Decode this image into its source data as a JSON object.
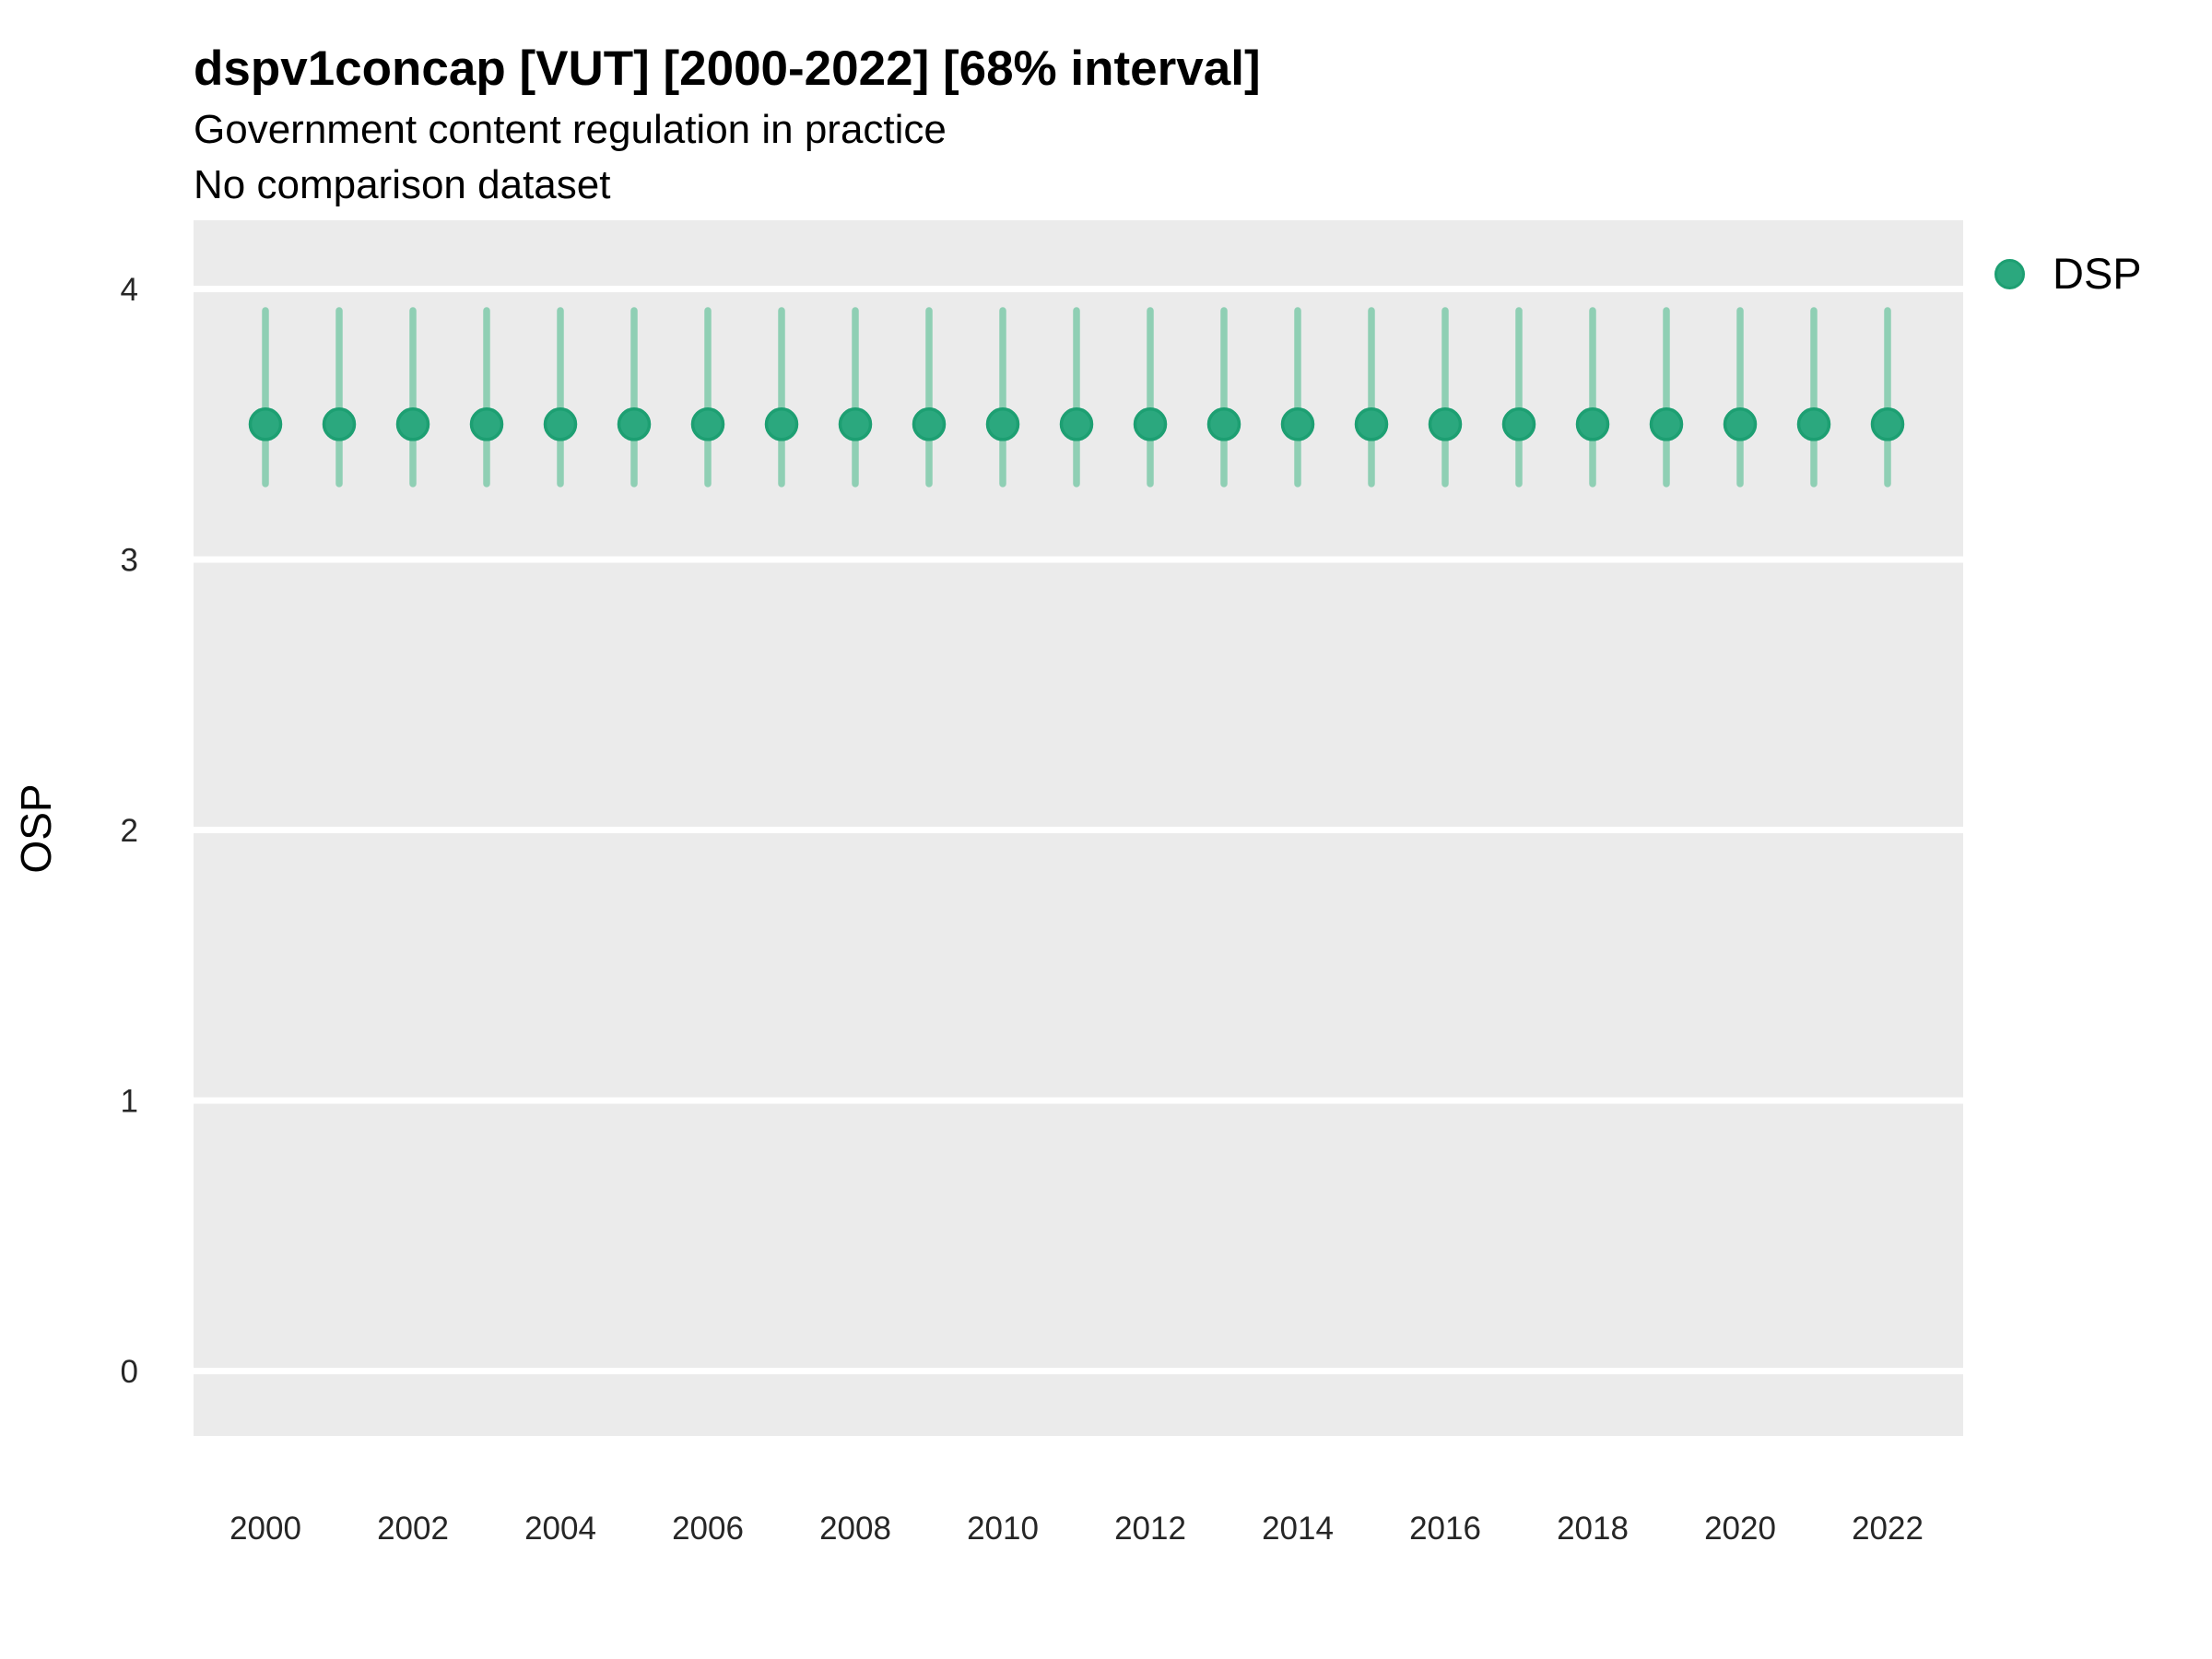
{
  "header": {
    "title": "dspv1concap [VUT] [2000-2022] [68% interval]",
    "subtitle1": "Government content regulation in practice",
    "subtitle2": "No comparison dataset"
  },
  "legend": {
    "position": "right-top",
    "items": [
      {
        "label": "DSP",
        "marker": "circle",
        "color": "#2BA87E"
      }
    ]
  },
  "chart_data": {
    "type": "scatter",
    "title": "dspv1concap [VUT] [2000-2022] [68% interval]",
    "subtitle": [
      "Government content regulation in practice",
      "No comparison dataset"
    ],
    "xlabel": "",
    "ylabel": "OSP",
    "interval_level": "68%",
    "x": [
      2000,
      2001,
      2002,
      2003,
      2004,
      2005,
      2006,
      2007,
      2008,
      2009,
      2010,
      2011,
      2012,
      2013,
      2014,
      2015,
      2016,
      2017,
      2018,
      2019,
      2020,
      2021,
      2022
    ],
    "series": [
      {
        "name": "DSP",
        "estimate": [
          3.5,
          3.5,
          3.5,
          3.5,
          3.5,
          3.5,
          3.5,
          3.5,
          3.5,
          3.5,
          3.5,
          3.5,
          3.5,
          3.5,
          3.5,
          3.5,
          3.5,
          3.5,
          3.5,
          3.5,
          3.5,
          3.5,
          3.5
        ],
        "lower_68": [
          3.28,
          3.28,
          3.28,
          3.28,
          3.28,
          3.28,
          3.28,
          3.28,
          3.28,
          3.28,
          3.28,
          3.28,
          3.28,
          3.28,
          3.28,
          3.28,
          3.28,
          3.28,
          3.28,
          3.28,
          3.28,
          3.28,
          3.28
        ],
        "upper_68": [
          3.92,
          3.92,
          3.92,
          3.92,
          3.92,
          3.92,
          3.92,
          3.92,
          3.92,
          3.92,
          3.92,
          3.92,
          3.92,
          3.92,
          3.92,
          3.92,
          3.92,
          3.92,
          3.92,
          3.92,
          3.92,
          3.92,
          3.92
        ]
      }
    ],
    "ylim": [
      -0.24,
      4.254
    ],
    "yticks": [
      0,
      1,
      2,
      3,
      4
    ],
    "xticks": [
      2000,
      2002,
      2004,
      2006,
      2008,
      2010,
      2012,
      2014,
      2016,
      2018,
      2020,
      2022
    ],
    "grid": "horizontal-major-only",
    "legend_position": "right-top",
    "colors": {
      "point_fill": "#2BA87E",
      "point_stroke": "#1D9F72",
      "interval_line": "#8FCFB4",
      "panel_background": "#EBEBEB",
      "gridline": "#FFFFFF",
      "tick_text": "#262626",
      "axis_title_text": "#000000"
    }
  }
}
